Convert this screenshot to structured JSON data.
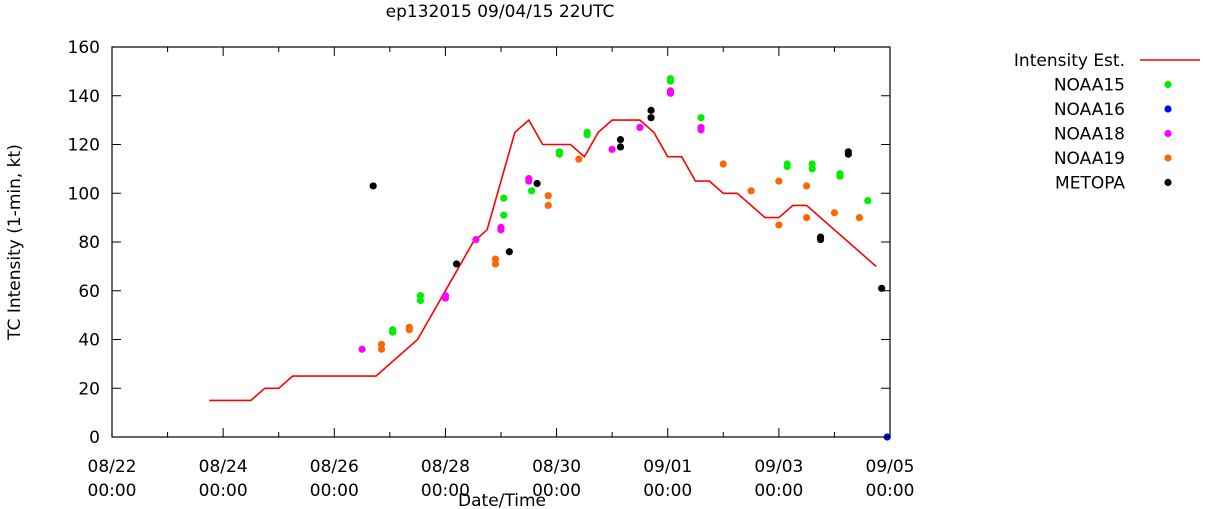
{
  "chart_data": {
    "type": "scatter",
    "title": "ep132015 09/04/15 22UTC",
    "xlabel": "Date/Time",
    "ylabel": "TC Intensity (1-min, kt)",
    "xlim": [
      0,
      14
    ],
    "ylim": [
      0,
      160
    ],
    "x_units": "days since 08/22 00:00",
    "x_ticks": [
      {
        "value": 0,
        "line1": "08/22",
        "line2": "00:00"
      },
      {
        "value": 2,
        "line1": "08/24",
        "line2": "00:00"
      },
      {
        "value": 4,
        "line1": "08/26",
        "line2": "00:00"
      },
      {
        "value": 6,
        "line1": "08/28",
        "line2": "00:00"
      },
      {
        "value": 8,
        "line1": "08/30",
        "line2": "00:00"
      },
      {
        "value": 10,
        "line1": "09/01",
        "line2": "00:00"
      },
      {
        "value": 12,
        "line1": "09/03",
        "line2": "00:00"
      },
      {
        "value": 14,
        "line1": "09/05",
        "line2": "00:00"
      }
    ],
    "y_ticks": [
      0,
      20,
      40,
      60,
      80,
      100,
      120,
      140,
      160
    ],
    "legend_position": "right, outside plot",
    "series": [
      {
        "name": "Intensity Est.",
        "kind": "line",
        "color": "#ff0000",
        "x": [
          1.75,
          2.5,
          2.75,
          3.0,
          3.25,
          4.0,
          4.75,
          5.5,
          6.0,
          6.5,
          6.75,
          7.0,
          7.25,
          7.5,
          7.75,
          8.0,
          8.25,
          8.5,
          8.75,
          9.0,
          9.25,
          9.5,
          9.75,
          10.0,
          10.25,
          10.5,
          10.75,
          11.0,
          11.25,
          11.5,
          11.75,
          12.0,
          12.25,
          12.5,
          12.75,
          13.0,
          13.25,
          13.5,
          13.75
        ],
        "y": [
          15,
          15,
          20,
          20,
          25,
          25,
          25,
          40,
          60,
          80,
          85,
          105,
          125,
          130,
          120,
          120,
          120,
          115,
          125,
          130,
          130,
          130,
          125,
          115,
          115,
          105,
          105,
          100,
          100,
          95,
          90,
          90,
          95,
          95,
          90,
          85,
          80,
          75,
          70
        ]
      },
      {
        "name": "NOAA15",
        "kind": "points",
        "color": "#00ee00",
        "points": [
          [
            5.05,
            43
          ],
          [
            5.05,
            44
          ],
          [
            5.55,
            56
          ],
          [
            5.55,
            58
          ],
          [
            7.05,
            91
          ],
          [
            7.05,
            98
          ],
          [
            7.55,
            101
          ],
          [
            8.05,
            116
          ],
          [
            8.05,
            117
          ],
          [
            8.55,
            124
          ],
          [
            8.55,
            125
          ],
          [
            10.05,
            146
          ],
          [
            10.05,
            147
          ],
          [
            10.6,
            131
          ],
          [
            12.15,
            111
          ],
          [
            12.15,
            112
          ],
          [
            12.6,
            110
          ],
          [
            12.6,
            112
          ],
          [
            13.1,
            107
          ],
          [
            13.1,
            108
          ],
          [
            13.6,
            97
          ]
        ]
      },
      {
        "name": "NOAA16",
        "kind": "points",
        "color": "#0000ee",
        "points": [
          [
            13.95,
            0
          ]
        ]
      },
      {
        "name": "NOAA18",
        "kind": "points",
        "color": "#ff00ff",
        "points": [
          [
            4.5,
            36
          ],
          [
            6.0,
            57
          ],
          [
            6.0,
            58
          ],
          [
            6.55,
            81
          ],
          [
            7.0,
            85
          ],
          [
            7.0,
            86
          ],
          [
            7.5,
            105
          ],
          [
            7.5,
            106
          ],
          [
            9.0,
            118
          ],
          [
            9.5,
            127
          ],
          [
            10.05,
            141
          ],
          [
            10.05,
            142
          ],
          [
            10.6,
            126
          ],
          [
            10.6,
            127
          ]
        ]
      },
      {
        "name": "NOAA19",
        "kind": "points",
        "color": "#ff6600",
        "points": [
          [
            4.85,
            36
          ],
          [
            4.85,
            38
          ],
          [
            5.35,
            44
          ],
          [
            5.35,
            45
          ],
          [
            6.9,
            71
          ],
          [
            6.9,
            73
          ],
          [
            7.85,
            95
          ],
          [
            7.85,
            99
          ],
          [
            8.4,
            114
          ],
          [
            11.0,
            112
          ],
          [
            11.5,
            101
          ],
          [
            12.0,
            105
          ],
          [
            12.0,
            87
          ],
          [
            12.5,
            103
          ],
          [
            12.5,
            90
          ],
          [
            13.0,
            92
          ],
          [
            13.45,
            90
          ]
        ]
      },
      {
        "name": "METOPA",
        "kind": "points",
        "color": "#000000",
        "points": [
          [
            4.7,
            103
          ],
          [
            6.2,
            71
          ],
          [
            7.15,
            76
          ],
          [
            7.65,
            104
          ],
          [
            9.15,
            119
          ],
          [
            9.15,
            122
          ],
          [
            9.7,
            131
          ],
          [
            9.7,
            134
          ],
          [
            12.75,
            81
          ],
          [
            12.75,
            82
          ],
          [
            13.25,
            116
          ],
          [
            13.25,
            117
          ],
          [
            13.85,
            61
          ]
        ]
      }
    ]
  }
}
